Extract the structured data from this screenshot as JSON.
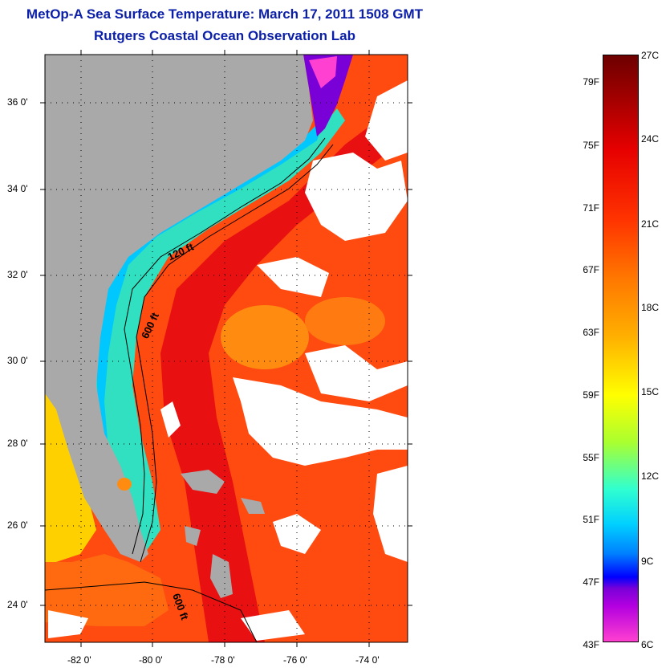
{
  "title": "MetOp-A Sea Surface Temperature:  March 17, 2011 1508 GMT",
  "subtitle": "Rutgers Coastal Ocean Observation Lab",
  "map": {
    "lat_ticks": [
      "36 0'",
      "34 0'",
      "32 0'",
      "30 0'",
      "28 0'",
      "26 0'",
      "24 0'"
    ],
    "lon_ticks": [
      "-82 0'",
      "-80 0'",
      "-78 0'",
      "-76 0'",
      "-74 0'"
    ],
    "contour_labels": [
      "120 ft",
      "600 ft",
      "600 ft"
    ],
    "colors": {
      "land": "#a9a9a9",
      "cloud": "#ffffff",
      "warm_stream": "#e81010",
      "offshore": "#ff4a10",
      "shelf_cool": "#00c8ff",
      "cold_bay": "#7a00d8"
    }
  },
  "colorbar": {
    "fahrenheit_labels": [
      "79F",
      "75F",
      "71F",
      "67F",
      "63F",
      "59F",
      "55F",
      "51F",
      "47F",
      "43F"
    ],
    "celsius_labels": [
      "27C",
      "24C",
      "21C",
      "18C",
      "15C",
      "12C",
      "9C",
      "6C"
    ]
  }
}
